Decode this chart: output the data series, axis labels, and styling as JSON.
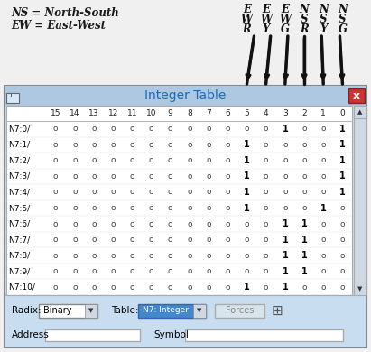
{
  "title": "Integer Table",
  "title_color": "#1a6bc0",
  "bg_top": "#f0f0f0",
  "win_bg": "#c8ddf0",
  "table_bg": "#ffffff",
  "titlebar_bg": "#adc8e0",
  "header_cols": [
    "15",
    "14",
    "13",
    "12",
    "11",
    "10",
    "9",
    "8",
    "7",
    "6",
    "5",
    "4",
    "3",
    "2",
    "1",
    "0"
  ],
  "row_labels": [
    "N7:0/",
    "N7:1/",
    "N7:2/",
    "N7:3/",
    "N7:4/",
    "N7:5/",
    "N7:6/",
    "N7:7/",
    "N7:8/",
    "N7:9/",
    "N7:10/"
  ],
  "table_data": [
    [
      0,
      0,
      0,
      0,
      0,
      0,
      0,
      0,
      0,
      0,
      0,
      0,
      1,
      0,
      0,
      1
    ],
    [
      0,
      0,
      0,
      0,
      0,
      0,
      0,
      0,
      0,
      0,
      1,
      0,
      0,
      0,
      0,
      1
    ],
    [
      0,
      0,
      0,
      0,
      0,
      0,
      0,
      0,
      0,
      0,
      1,
      0,
      0,
      0,
      0,
      1
    ],
    [
      0,
      0,
      0,
      0,
      0,
      0,
      0,
      0,
      0,
      0,
      1,
      0,
      0,
      0,
      0,
      1
    ],
    [
      0,
      0,
      0,
      0,
      0,
      0,
      0,
      0,
      0,
      0,
      1,
      0,
      0,
      0,
      0,
      1
    ],
    [
      0,
      0,
      0,
      0,
      0,
      0,
      0,
      0,
      0,
      0,
      1,
      0,
      0,
      0,
      1,
      0
    ],
    [
      0,
      0,
      0,
      0,
      0,
      0,
      0,
      0,
      0,
      0,
      0,
      0,
      1,
      1,
      0,
      0
    ],
    [
      0,
      0,
      0,
      0,
      0,
      0,
      0,
      0,
      0,
      0,
      0,
      0,
      1,
      1,
      0,
      0
    ],
    [
      0,
      0,
      0,
      0,
      0,
      0,
      0,
      0,
      0,
      0,
      0,
      0,
      1,
      1,
      0,
      0
    ],
    [
      0,
      0,
      0,
      0,
      0,
      0,
      0,
      0,
      0,
      0,
      0,
      0,
      1,
      1,
      0,
      0
    ],
    [
      0,
      0,
      0,
      0,
      0,
      0,
      0,
      0,
      0,
      0,
      1,
      0,
      1,
      0,
      0,
      0
    ]
  ],
  "ns_label": "NS = North-South",
  "ew_label": "EW = East-West",
  "col_labels_top": [
    [
      "E",
      "E",
      "E",
      "N",
      "N",
      "N"
    ],
    [
      "W",
      "W",
      "W",
      "S",
      "S",
      "S"
    ],
    [
      "R",
      "Y",
      "G",
      "R",
      "Y",
      "G"
    ]
  ],
  "col_labels_cols": [
    5,
    4,
    3,
    2,
    1,
    0
  ],
  "radix_label": "Radix:",
  "radix_value": "Binary",
  "table_label": "Table:",
  "table_value": "N7: Integer",
  "forces_label": "Forces",
  "address_label": "Address",
  "symbol_label": "Symbol",
  "close_btn_bg": "#cc3333",
  "header_text_color": "#222222",
  "row_label_color": "#000000",
  "cell_zero_color": "#444444",
  "cell_one_color": "#000000"
}
